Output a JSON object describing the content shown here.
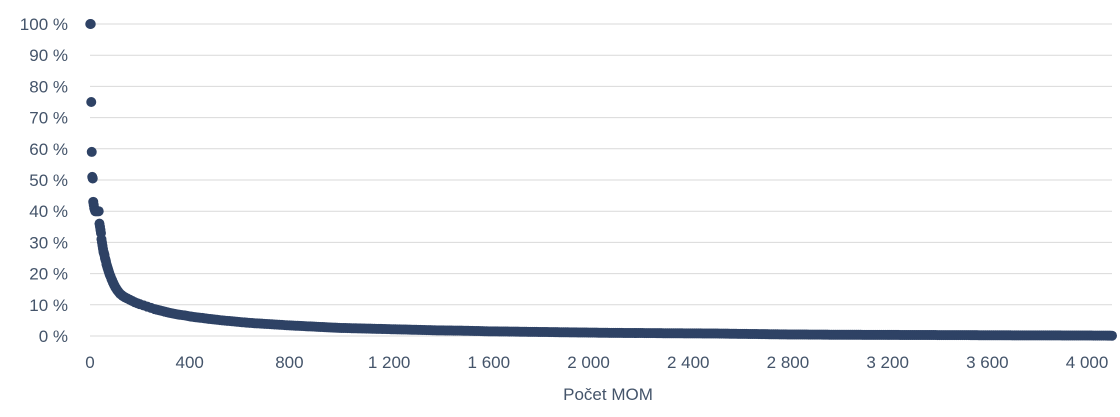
{
  "chart_data": {
    "type": "scatter",
    "title": "",
    "xlabel": "Počet MOM",
    "ylabel": "",
    "xlim": [
      0,
      4100
    ],
    "ylim": [
      0,
      100
    ],
    "grid": true,
    "legend": "none",
    "marker_color": "#2e4265",
    "grid_color": "#d9d9d9",
    "x_ticks": [
      {
        "value": 0,
        "label": "0"
      },
      {
        "value": 400,
        "label": "400"
      },
      {
        "value": 800,
        "label": "800"
      },
      {
        "value": 1200,
        "label": "1 200"
      },
      {
        "value": 1600,
        "label": "1 600"
      },
      {
        "value": 2000,
        "label": "2 000"
      },
      {
        "value": 2400,
        "label": "2 400"
      },
      {
        "value": 2800,
        "label": "2 800"
      },
      {
        "value": 3200,
        "label": "3 200"
      },
      {
        "value": 3600,
        "label": "3 600"
      },
      {
        "value": 4000,
        "label": "4 000"
      }
    ],
    "y_ticks": [
      {
        "value": 0,
        "label": "0 %"
      },
      {
        "value": 10,
        "label": "10 %"
      },
      {
        "value": 20,
        "label": "20 %"
      },
      {
        "value": 30,
        "label": "30 %"
      },
      {
        "value": 40,
        "label": "40 %"
      },
      {
        "value": 50,
        "label": "50 %"
      },
      {
        "value": 60,
        "label": "60 %"
      },
      {
        "value": 70,
        "label": "70 %"
      },
      {
        "value": 80,
        "label": "80 %"
      },
      {
        "value": 90,
        "label": "90 %"
      },
      {
        "value": 100,
        "label": "100 %"
      }
    ],
    "points": [
      [
        1,
        100
      ],
      [
        3,
        100
      ],
      [
        5,
        75
      ],
      [
        7,
        59
      ],
      [
        9,
        51
      ],
      [
        11,
        50.5
      ],
      [
        13,
        43
      ],
      [
        15,
        42
      ],
      [
        17,
        41
      ],
      [
        19,
        40.5
      ],
      [
        21,
        40
      ],
      [
        25,
        40
      ],
      [
        30,
        40
      ],
      [
        35,
        40
      ],
      [
        38,
        36
      ],
      [
        40,
        35
      ],
      [
        42,
        34
      ],
      [
        44,
        33
      ],
      [
        46,
        31
      ],
      [
        48,
        30
      ],
      [
        50,
        29
      ],
      [
        52,
        28
      ],
      [
        54,
        27
      ],
      [
        56,
        26.5
      ],
      [
        58,
        26
      ],
      [
        60,
        25
      ],
      [
        62,
        24.5
      ],
      [
        64,
        24
      ],
      [
        66,
        23
      ],
      [
        68,
        22.5
      ],
      [
        70,
        22
      ],
      [
        72,
        21.5
      ],
      [
        74,
        21
      ],
      [
        76,
        20.5
      ],
      [
        78,
        20
      ],
      [
        80,
        19.5
      ],
      [
        83,
        19
      ],
      [
        86,
        18.3
      ],
      [
        89,
        17.8
      ],
      [
        92,
        17.2
      ],
      [
        95,
        16.7
      ],
      [
        98,
        16.2
      ],
      [
        102,
        15.6
      ],
      [
        106,
        15.1
      ],
      [
        110,
        14.6
      ],
      [
        115,
        14.1
      ],
      [
        120,
        13.6
      ],
      [
        126,
        13.2
      ],
      [
        132,
        12.8
      ],
      [
        140,
        12.4
      ],
      [
        150,
        12
      ],
      [
        160,
        11.6
      ],
      [
        170,
        11.2
      ],
      [
        180,
        10.8
      ],
      [
        190,
        10.5
      ],
      [
        200,
        10.2
      ],
      [
        215,
        9.8
      ],
      [
        230,
        9.4
      ],
      [
        245,
        9
      ],
      [
        260,
        8.6
      ],
      [
        280,
        8.2
      ],
      [
        300,
        7.8
      ],
      [
        320,
        7.4
      ],
      [
        340,
        7.1
      ],
      [
        360,
        6.8
      ],
      [
        380,
        6.6
      ],
      [
        400,
        6.3
      ],
      [
        425,
        6
      ],
      [
        450,
        5.8
      ],
      [
        475,
        5.5
      ],
      [
        500,
        5.3
      ],
      [
        530,
        5
      ],
      [
        560,
        4.8
      ],
      [
        600,
        4.5
      ],
      [
        640,
        4.2
      ],
      [
        680,
        4
      ],
      [
        720,
        3.8
      ],
      [
        760,
        3.6
      ],
      [
        800,
        3.4
      ],
      [
        850,
        3.2
      ],
      [
        900,
        3
      ],
      [
        950,
        2.8
      ],
      [
        1000,
        2.6
      ],
      [
        1050,
        2.5
      ],
      [
        1100,
        2.4
      ],
      [
        1150,
        2.3
      ],
      [
        1200,
        2.2
      ],
      [
        1300,
        2
      ],
      [
        1400,
        1.8
      ],
      [
        1500,
        1.7
      ],
      [
        1600,
        1.5
      ],
      [
        1700,
        1.4
      ],
      [
        1800,
        1.3
      ],
      [
        1900,
        1.2
      ],
      [
        2000,
        1.1
      ],
      [
        2100,
        1
      ],
      [
        2200,
        0.95
      ],
      [
        2300,
        0.9
      ],
      [
        2400,
        0.85
      ],
      [
        2500,
        0.8
      ],
      [
        2600,
        0.7
      ],
      [
        2700,
        0.6
      ],
      [
        2800,
        0.5
      ],
      [
        2900,
        0.45
      ],
      [
        3000,
        0.4
      ],
      [
        3100,
        0.38
      ],
      [
        3200,
        0.35
      ],
      [
        3300,
        0.33
      ],
      [
        3400,
        0.3
      ],
      [
        3500,
        0.28
      ],
      [
        3600,
        0.25
      ],
      [
        3700,
        0.22
      ],
      [
        3800,
        0.2
      ],
      [
        3900,
        0.18
      ],
      [
        4000,
        0.15
      ],
      [
        4050,
        0.13
      ],
      [
        4100,
        0.1
      ]
    ]
  }
}
